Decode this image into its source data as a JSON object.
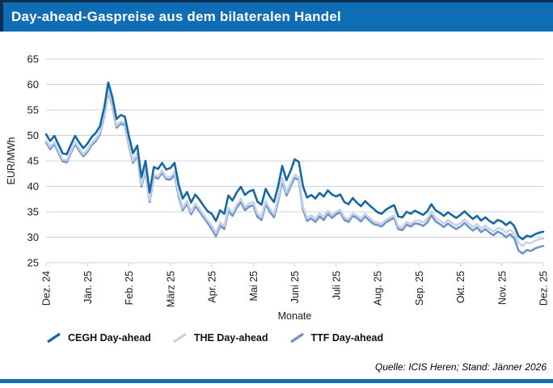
{
  "header": {
    "title": "Day-ahead-Gaspreise aus dem bilateralen Handel"
  },
  "footer": {
    "source": "Quelle: ICIS Heren; Stand: Jänner 2026"
  },
  "colors": {
    "primary_blue": "#0e6db5",
    "title_border_dark": "#0d2f52",
    "grid_line": "#ccd3dc",
    "axis_text": "#1a1a1a",
    "cegh_line": "#1767a5",
    "the_line": "#c3d3e9",
    "ttf_line": "#7094c6"
  },
  "chart_data": {
    "type": "line",
    "title": "Day-ahead-Gaspreise aus dem bilateralen Handel",
    "xlabel": "Monate",
    "ylabel": "EUR/MWh",
    "ylim": [
      25,
      65
    ],
    "yticks": [
      25,
      30,
      35,
      40,
      45,
      50,
      55,
      60,
      65
    ],
    "grid": "horizontal",
    "legend_position": "bottom",
    "x_tick_labels": [
      "Dez. 24",
      "Jän. 25",
      "Feb. 25",
      "März 25",
      "Apr. 25",
      "Mai 25",
      "Juni 25",
      "Juli 25",
      "Aug. 25",
      "Sep. 25",
      "Okt. 25",
      "Nov. 25",
      "Dez. 25"
    ],
    "x_note": "values evenly spaced from Dez. 24 to Dez. 25 (daily day-ahead prices)",
    "series": [
      {
        "name": "CEGH Day-ahead",
        "color": "#1767a5",
        "values": [
          50.2,
          48.9,
          49.9,
          48.2,
          46.5,
          46.3,
          48.2,
          49.9,
          48.6,
          47.5,
          48.4,
          49.7,
          50.5,
          51.8,
          55.3,
          60.4,
          57.5,
          53.2,
          54.0,
          53.7,
          49.8,
          46.5,
          48.0,
          41.8,
          45.0,
          38.8,
          43.8,
          43.4,
          44.6,
          43.3,
          43.6,
          44.6,
          40.3,
          37.6,
          38.9,
          36.8,
          38.4,
          37.4,
          36.2,
          35.1,
          34.6,
          33.2,
          35.3,
          34.6,
          38.2,
          37.2,
          38.8,
          39.9,
          38.3,
          39.0,
          39.3,
          37.0,
          36.4,
          39.5,
          38.0,
          36.9,
          40.0,
          44.0,
          41.2,
          43.0,
          45.3,
          44.8,
          40.0,
          37.8,
          38.3,
          37.6,
          38.7,
          38.0,
          39.2,
          38.4,
          38.0,
          38.4,
          36.9,
          36.5,
          37.7,
          36.8,
          36.1,
          37.1,
          36.3,
          35.6,
          34.9,
          34.6,
          35.4,
          35.9,
          36.3,
          34.1,
          33.9,
          35.0,
          34.6,
          35.2,
          34.8,
          34.4,
          35.1,
          36.5,
          35.3,
          34.8,
          34.2,
          34.9,
          34.3,
          33.8,
          34.4,
          35.1,
          34.3,
          33.6,
          34.2,
          33.3,
          33.9,
          33.2,
          32.7,
          33.4,
          33.1,
          32.4,
          33.0,
          32.2,
          30.2,
          29.6,
          30.3,
          30.1,
          30.6,
          30.9,
          31.1
        ]
      },
      {
        "name": "THE Day-ahead",
        "color": "#c3d3e9",
        "values": [
          49.0,
          47.7,
          48.7,
          47.0,
          45.3,
          45.1,
          47.0,
          48.7,
          47.4,
          46.3,
          47.2,
          48.5,
          49.3,
          50.6,
          54.1,
          59.0,
          56.2,
          51.9,
          52.7,
          52.4,
          48.3,
          45.0,
          46.5,
          40.3,
          43.5,
          37.3,
          42.3,
          41.9,
          43.1,
          41.8,
          41.8,
          42.8,
          38.5,
          35.8,
          37.1,
          35.0,
          36.6,
          35.6,
          34.4,
          33.3,
          32.2,
          30.8,
          32.9,
          32.2,
          35.8,
          34.8,
          36.4,
          37.5,
          35.9,
          36.6,
          36.9,
          34.6,
          34.0,
          37.1,
          35.6,
          34.5,
          37.6,
          41.6,
          38.8,
          40.6,
          42.3,
          41.8,
          36.0,
          33.8,
          34.3,
          33.6,
          34.7,
          34.0,
          35.2,
          34.4,
          35.0,
          35.4,
          33.9,
          33.5,
          34.7,
          34.3,
          33.6,
          34.6,
          33.8,
          33.1,
          32.9,
          32.6,
          33.4,
          33.9,
          34.3,
          32.1,
          31.9,
          33.0,
          32.6,
          33.2,
          33.3,
          32.9,
          33.6,
          35.0,
          33.8,
          33.3,
          32.7,
          33.4,
          32.8,
          32.3,
          32.8,
          33.5,
          32.7,
          32.0,
          32.6,
          31.7,
          32.3,
          31.6,
          31.1,
          31.8,
          31.6,
          30.9,
          31.5,
          30.7,
          28.9,
          28.3,
          29.0,
          28.8,
          29.3,
          29.6,
          29.8
        ]
      },
      {
        "name": "TTF Day-ahead",
        "color": "#7094c6",
        "values": [
          48.6,
          47.3,
          48.3,
          46.6,
          44.9,
          44.7,
          46.6,
          48.3,
          47.0,
          45.9,
          46.8,
          48.1,
          48.9,
          50.2,
          53.7,
          58.6,
          55.8,
          51.5,
          52.3,
          52.0,
          47.9,
          44.6,
          46.1,
          39.9,
          43.1,
          36.9,
          41.9,
          41.5,
          42.7,
          41.4,
          41.3,
          42.3,
          38.0,
          35.3,
          36.6,
          34.5,
          36.1,
          35.1,
          33.9,
          32.8,
          31.6,
          30.2,
          32.3,
          31.6,
          35.2,
          34.2,
          35.8,
          36.9,
          35.3,
          36.0,
          36.3,
          34.0,
          33.4,
          36.5,
          35.0,
          33.9,
          37.0,
          41.0,
          38.2,
          40.0,
          41.7,
          41.2,
          35.4,
          33.2,
          33.7,
          33.0,
          34.1,
          33.4,
          34.6,
          33.8,
          34.5,
          34.9,
          33.4,
          33.0,
          34.2,
          33.8,
          33.1,
          34.1,
          33.3,
          32.6,
          32.4,
          32.1,
          32.9,
          33.4,
          33.8,
          31.6,
          31.4,
          32.5,
          32.1,
          32.7,
          32.6,
          32.2,
          32.9,
          34.3,
          33.1,
          32.6,
          32.0,
          32.7,
          32.1,
          31.6,
          32.1,
          32.8,
          32.0,
          31.3,
          31.9,
          31.0,
          31.6,
          30.9,
          30.4,
          31.1,
          30.7,
          30.0,
          30.6,
          29.8,
          27.4,
          26.8,
          27.5,
          27.3,
          27.8,
          28.1,
          28.3
        ]
      }
    ]
  }
}
